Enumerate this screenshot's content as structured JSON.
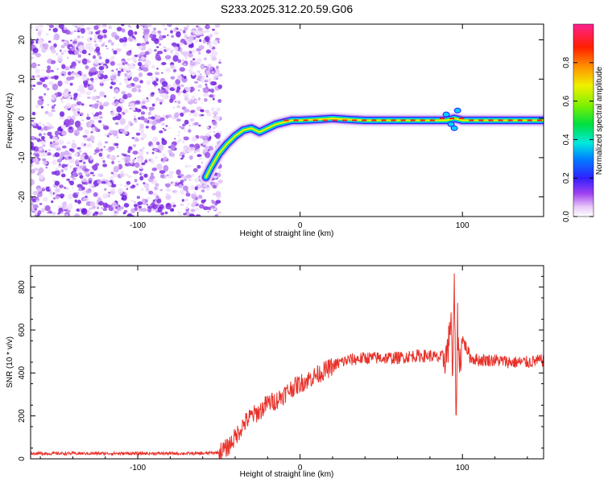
{
  "page_title": "S233.2025.312.20.59.G06",
  "colors": {
    "snr_line": "#e8312a",
    "scatter": "#8a2be2",
    "frame": "#000000"
  },
  "chart_data": [
    {
      "id": "spectrogram",
      "type": "heatmap",
      "title": "S233.2025.312.20.59.G06",
      "xlabel": "Height of straight line (km)",
      "ylabel": "Frequency (Hz)",
      "xlim": [
        -166,
        150
      ],
      "ylim": [
        -25,
        24
      ],
      "x_ticks": [
        -100,
        0,
        100
      ],
      "y_ticks": [
        -20,
        -10,
        0,
        10,
        20
      ],
      "noise_region_x": [
        -166,
        -52
      ],
      "ridge": {
        "x": [
          -58,
          -55,
          -50,
          -45,
          -40,
          -35,
          -30,
          -25,
          -20,
          -15,
          -10,
          -5,
          0,
          10,
          20,
          30,
          40,
          60,
          80,
          90,
          95,
          100,
          120,
          150
        ],
        "y": [
          -15,
          -12.5,
          -9,
          -6.5,
          -4.5,
          -3,
          -2.5,
          -3.5,
          -2.5,
          -1.5,
          -1,
          -0.5,
          -0.5,
          -0.3,
          0,
          -0.3,
          -0.5,
          -0.5,
          -0.5,
          -0.5,
          0,
          -0.5,
          -0.5,
          -0.5
        ]
      },
      "colorbar": {
        "label": "Normalized spectral amplitude",
        "range": [
          0,
          1
        ],
        "ticks": [
          "0.0",
          "0.2",
          "0.4",
          "0.6",
          "0.8"
        ],
        "tick_values": [
          0,
          0.2,
          0.4,
          0.6,
          0.8
        ]
      }
    },
    {
      "id": "snr",
      "type": "line",
      "xlabel": "Height of straight line (km)",
      "ylabel": "SNR (10 * v/v)",
      "xlim": [
        -166,
        150
      ],
      "ylim": [
        0,
        900
      ],
      "x_ticks": [
        -100,
        0,
        100
      ],
      "y_ticks": [
        0,
        200,
        400,
        600,
        800
      ],
      "series": [
        {
          "name": "SNR",
          "x": [
            -166,
            -140,
            -120,
            -100,
            -80,
            -60,
            -50,
            -45,
            -40,
            -35,
            -30,
            -25,
            -20,
            -15,
            -10,
            -5,
            0,
            5,
            10,
            15,
            20,
            25,
            30,
            40,
            50,
            60,
            70,
            80,
            85,
            90,
            92,
            93,
            94,
            95,
            96,
            97,
            98,
            100,
            105,
            110,
            120,
            130,
            140,
            150
          ],
          "y": [
            25,
            25,
            25,
            25,
            25,
            25,
            30,
            50,
            100,
            160,
            200,
            220,
            260,
            270,
            300,
            330,
            350,
            370,
            390,
            410,
            430,
            450,
            460,
            470,
            470,
            470,
            480,
            480,
            470,
            480,
            560,
            700,
            330,
            860,
            150,
            650,
            420,
            560,
            470,
            460,
            460,
            450,
            450,
            460
          ]
        }
      ]
    }
  ]
}
